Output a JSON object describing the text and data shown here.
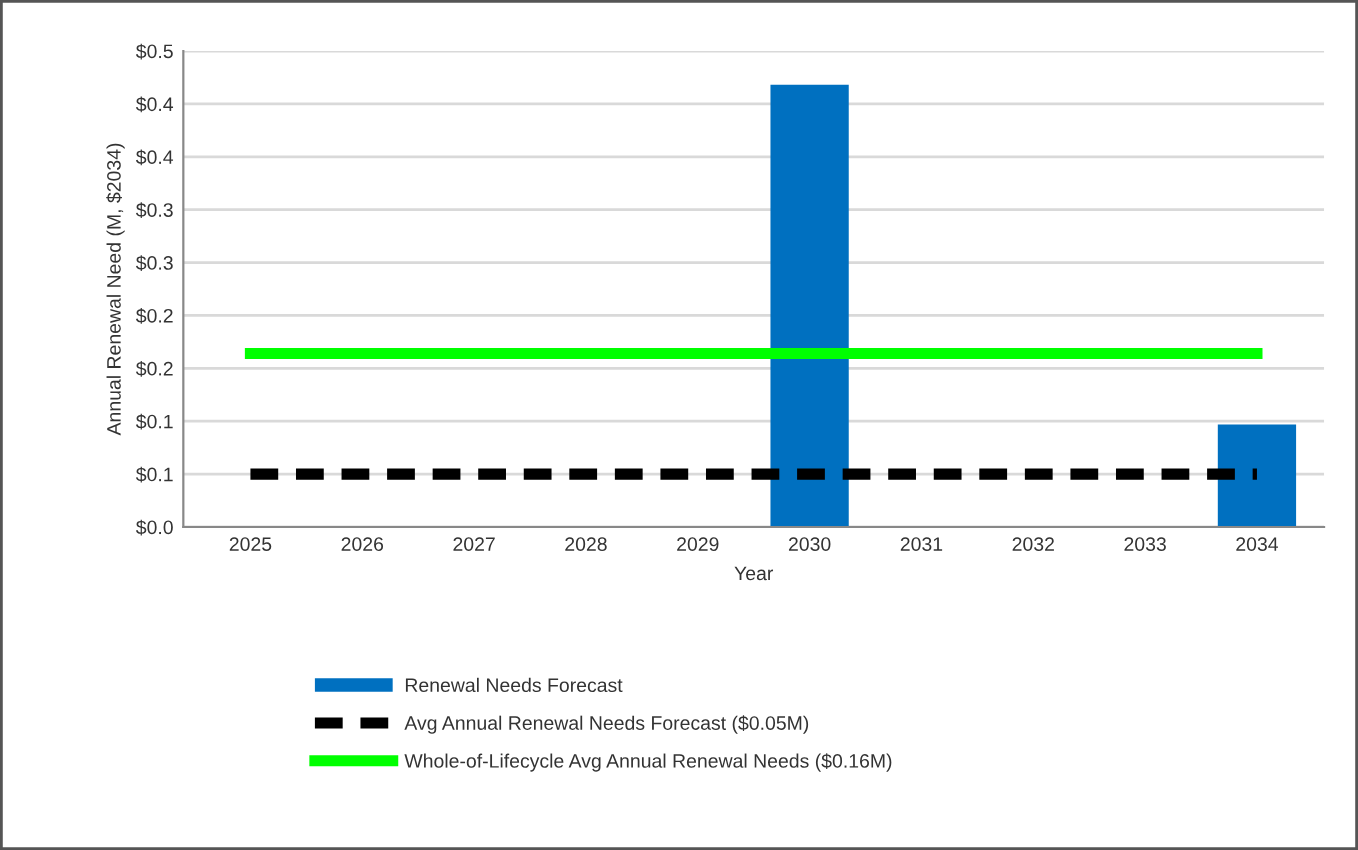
{
  "chart_data": {
    "type": "bar",
    "xlabel": "Year",
    "ylabel": "Annual Renewal Need (M, $2034)",
    "categories": [
      "2025",
      "2026",
      "2027",
      "2028",
      "2029",
      "2030",
      "2031",
      "2032",
      "2033",
      "2034"
    ],
    "series": [
      {
        "name": "Renewal Needs Forecast",
        "color": "#0070c0",
        "values": [
          0,
          0,
          0,
          0,
          0,
          0.418,
          0,
          0,
          0,
          0.097
        ]
      },
      {
        "name": "Avg Annual Renewal Needs Forecast ($0.05M)",
        "type": "line",
        "color": "#000000",
        "line_style": "dashed",
        "values": [
          0.05,
          0.05,
          0.05,
          0.05,
          0.05,
          0.05,
          0.05,
          0.05,
          0.05,
          0.05
        ]
      },
      {
        "name": "Whole-of-Lifecycle Avg Annual Renewal Needs ($0.16M)",
        "type": "line",
        "color": "#00ff00",
        "line_style": "solid",
        "values": [
          0.164,
          0.164,
          0.164,
          0.164,
          0.164,
          0.164,
          0.164,
          0.164,
          0.164,
          0.164
        ]
      }
    ],
    "ylim": [
      0,
      0.45
    ],
    "yticks": [
      {
        "value": 0,
        "label": "$0.0"
      },
      {
        "value": 0.05,
        "label": "$0.1"
      },
      {
        "value": 0.1,
        "label": "$0.1"
      },
      {
        "value": 0.15,
        "label": "$0.2"
      },
      {
        "value": 0.2,
        "label": "$0.2"
      },
      {
        "value": 0.25,
        "label": "$0.3"
      },
      {
        "value": 0.3,
        "label": "$0.3"
      },
      {
        "value": 0.35,
        "label": "$0.4"
      },
      {
        "value": 0.4,
        "label": "$0.4"
      },
      {
        "value": 0.45,
        "label": "$0.5"
      }
    ],
    "grid": "y",
    "legend": "bottom"
  }
}
